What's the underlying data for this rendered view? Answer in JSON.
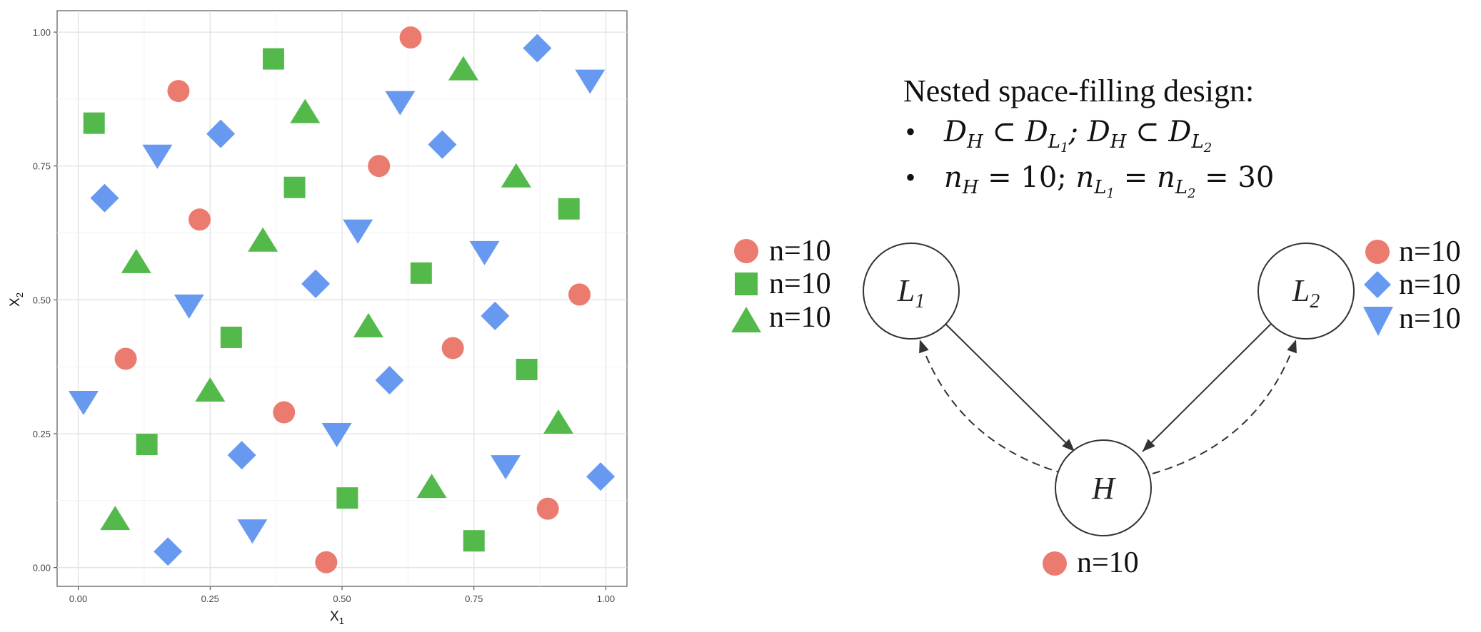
{
  "chart_data": {
    "type": "scatter",
    "title": "",
    "xlabel": "X",
    "xlabel_sub": "1",
    "ylabel": "X",
    "ylabel_sub": "2",
    "xlim": [
      -0.04,
      1.04
    ],
    "ylim": [
      -0.035,
      1.04
    ],
    "xticks": [
      "0.00",
      "0.25",
      "0.50",
      "0.75",
      "1.00"
    ],
    "yticks": [
      "0.00",
      "0.25",
      "0.50",
      "0.75",
      "1.00"
    ],
    "xtick_values": [
      0,
      0.25,
      0.5,
      0.75,
      1
    ],
    "ytick_values": [
      0,
      0.25,
      0.5,
      0.75,
      1
    ],
    "grid": true,
    "series": [
      {
        "marker": "circle",
        "color": "#ec7b6f",
        "x": [
          0.63,
          0.19,
          0.57,
          0.23,
          0.95,
          0.09,
          0.71,
          0.39,
          0.89,
          0.47
        ],
        "y": [
          0.99,
          0.89,
          0.75,
          0.65,
          0.51,
          0.39,
          0.41,
          0.29,
          0.11,
          0.01
        ]
      },
      {
        "marker": "square",
        "color": "#53b94b",
        "x": [
          0.37,
          0.03,
          0.41,
          0.93,
          0.65,
          0.29,
          0.85,
          0.13,
          0.51,
          0.75
        ],
        "y": [
          0.95,
          0.83,
          0.71,
          0.67,
          0.55,
          0.43,
          0.37,
          0.23,
          0.13,
          0.05
        ]
      },
      {
        "marker": "triangle-up",
        "color": "#53b94b",
        "x": [
          0.73,
          0.43,
          0.83,
          0.35,
          0.11,
          0.55,
          0.25,
          0.91,
          0.67,
          0.07
        ],
        "y": [
          0.93,
          0.85,
          0.73,
          0.61,
          0.57,
          0.45,
          0.33,
          0.27,
          0.15,
          0.09
        ]
      },
      {
        "marker": "diamond",
        "color": "#6899f0",
        "x": [
          0.87,
          0.27,
          0.69,
          0.05,
          0.45,
          0.79,
          0.59,
          0.31,
          0.99,
          0.17
        ],
        "y": [
          0.97,
          0.81,
          0.79,
          0.69,
          0.53,
          0.47,
          0.35,
          0.21,
          0.17,
          0.03
        ]
      },
      {
        "marker": "triangle-down",
        "color": "#6899f0",
        "x": [
          0.97,
          0.61,
          0.15,
          0.53,
          0.77,
          0.21,
          0.01,
          0.49,
          0.81,
          0.33
        ],
        "y": [
          0.91,
          0.87,
          0.77,
          0.63,
          0.59,
          0.49,
          0.31,
          0.25,
          0.19,
          0.07
        ]
      }
    ]
  },
  "diagram": {
    "title": "Nested space-filling design:",
    "bullets": [
      {
        "bullet": "•",
        "text": "D_H ⊂ D_{L1}; D_H ⊂ D_{L2}"
      },
      {
        "bullet": "•",
        "text": "n_H = 10; n_{L1} = n_{L2} = 30"
      }
    ],
    "nodes": {
      "L1": {
        "name": "L",
        "sub": "1"
      },
      "L2": {
        "name": "L",
        "sub": "2"
      },
      "H": {
        "name": "H"
      }
    },
    "legend_L1": [
      {
        "marker": "circle",
        "label": "n=10"
      },
      {
        "marker": "square",
        "label": "n=10"
      },
      {
        "marker": "triangle-up",
        "label": "n=10"
      }
    ],
    "legend_L2": [
      {
        "marker": "circle",
        "label": "n=10"
      },
      {
        "marker": "diamond",
        "label": "n=10"
      },
      {
        "marker": "triangle-down",
        "label": "n=10"
      }
    ],
    "legend_H": [
      {
        "marker": "circle",
        "label": "n=10"
      }
    ]
  },
  "colors": {
    "red": "#ec7b6f",
    "green": "#53b94b",
    "blue": "#6899f0"
  }
}
